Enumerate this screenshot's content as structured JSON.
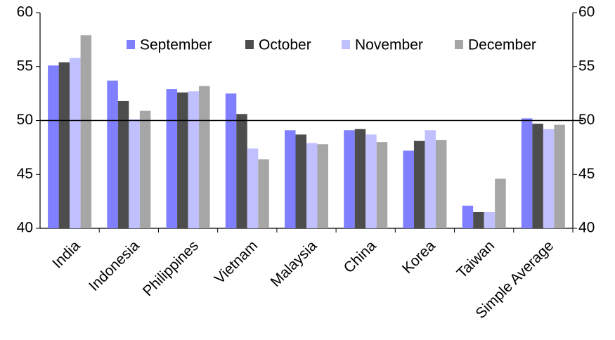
{
  "chart_data": {
    "type": "bar",
    "categories": [
      "India",
      "Indonesia",
      "Philippines",
      "Vietnam",
      "Malaysia",
      "China",
      "Korea",
      "Taiwan",
      "Simple Average"
    ],
    "series": [
      {
        "name": "September",
        "color": "#7f7fff",
        "values": [
          55.1,
          53.7,
          52.9,
          52.5,
          49.1,
          49.1,
          47.2,
          42.1,
          50.2
        ]
      },
      {
        "name": "October",
        "color": "#4d4d4d",
        "values": [
          55.4,
          51.8,
          52.6,
          50.6,
          48.7,
          49.2,
          48.1,
          41.5,
          49.7
        ]
      },
      {
        "name": "November",
        "color": "#c0c0ff",
        "values": [
          55.8,
          50.1,
          52.7,
          47.4,
          47.9,
          48.7,
          49.1,
          41.5,
          49.2
        ]
      },
      {
        "name": "December",
        "color": "#a6a6a6",
        "values": [
          57.9,
          50.9,
          53.2,
          46.4,
          47.8,
          48.0,
          48.2,
          44.6,
          49.6
        ]
      }
    ],
    "ylim": [
      40,
      60
    ],
    "yticks": [
      40,
      45,
      50,
      55,
      60
    ],
    "y2lim": [
      40,
      60
    ],
    "y2ticks": [
      40,
      45,
      50,
      55,
      60
    ],
    "hline": 50,
    "grid": false,
    "legend": "top"
  }
}
